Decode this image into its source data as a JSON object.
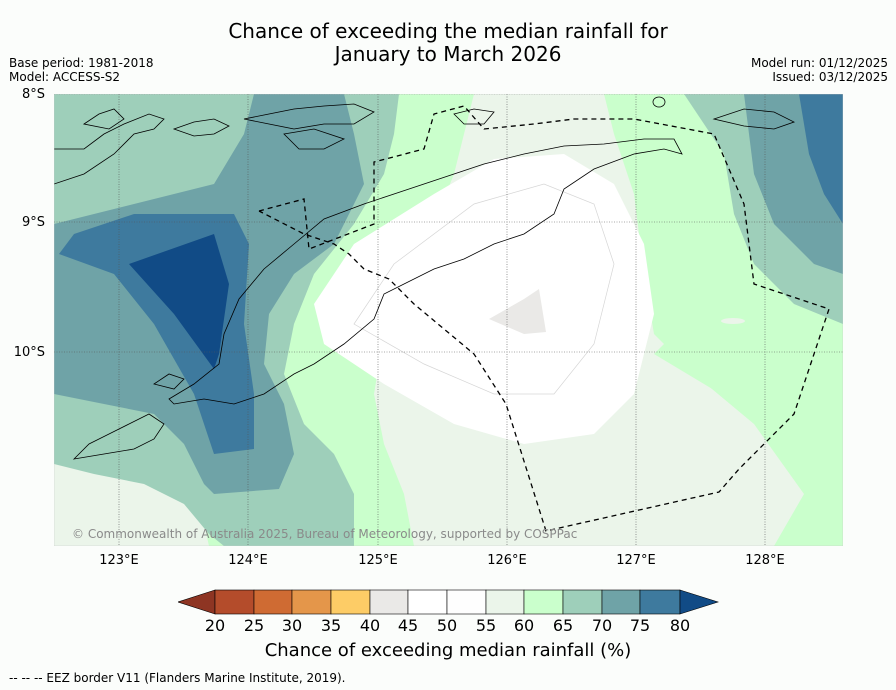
{
  "title": {
    "line1": "Chance of exceeding the median rainfall for",
    "line2": "January to March 2026"
  },
  "metadata": {
    "base_period": "Base period: 1981-2018",
    "model": "Model: ACCESS-S2",
    "model_run": "Model run: 01/12/2025",
    "issued": "Issued: 03/12/2025"
  },
  "axes": {
    "lat_labels": [
      "8°S",
      "9°S",
      "10°S"
    ],
    "lon_labels": [
      "123°E",
      "124°E",
      "125°E",
      "126°E",
      "127°E",
      "128°E"
    ]
  },
  "copyright": "© Commonwealth of Australia 2025, Bureau of Meteorology, supported by COSPPac",
  "colorbar": {
    "ticks": [
      "20",
      "25",
      "30",
      "35",
      "40",
      "45",
      "50",
      "55",
      "60",
      "65",
      "70",
      "75",
      "80"
    ],
    "colors": {
      "below20": "#8e3523",
      "c20_25": "#b44c2b",
      "c25_30": "#cf6b33",
      "c30_35": "#e4964a",
      "c35_40": "#fdcc66",
      "c40_45": "#eae9e7",
      "c45_50": "#ffffff",
      "c50_55": "#fefefe",
      "c55_60": "#ebf5ea",
      "c60_65": "#caffcc",
      "c65_70": "#9ecfba",
      "c70_75": "#6fa3a7",
      "c75_80": "#3e7a9e",
      "above80": "#114b86"
    },
    "label": "Chance of exceeding median rainfall (%)"
  },
  "footnote": "--  --  -- EEZ border V11 (Flanders Marine Institute, 2019)."
}
